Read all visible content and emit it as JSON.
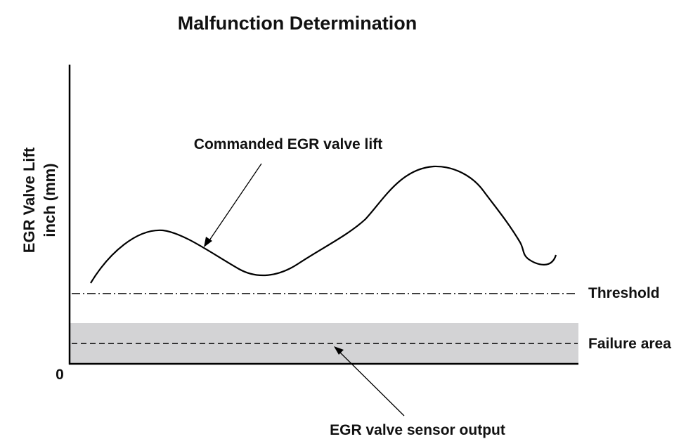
{
  "title": "Malfunction Determination",
  "y_axis": {
    "label_line1": "EGR Valve Lift",
    "label_line2": "inch (mm)",
    "origin_label": "0"
  },
  "annotations": {
    "commanded_lift": "Commanded EGR valve lift",
    "threshold": "Threshold",
    "failure_area": "Failure area",
    "sensor_output": "EGR valve sensor output"
  },
  "colors": {
    "line": "#000000",
    "failure_area_fill": "#d3d3d5"
  }
}
